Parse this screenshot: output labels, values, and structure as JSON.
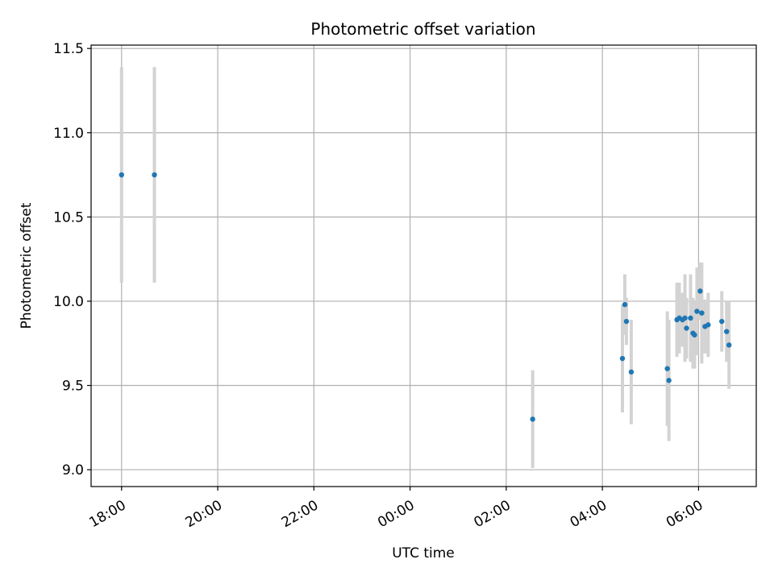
{
  "chart_data": {
    "type": "scatter",
    "title": "Photometric offset variation",
    "xlabel": "UTC time",
    "ylabel": "Photometric offset",
    "grid": true,
    "x_axis_type": "time",
    "xlim": [
      "17:22",
      "07:12"
    ],
    "ylim": [
      8.9,
      11.52
    ],
    "x_ticks": [
      "18:00",
      "20:00",
      "22:00",
      "00:00",
      "02:00",
      "04:00",
      "06:00"
    ],
    "y_ticks": [
      "9.0",
      "9.5",
      "10.0",
      "10.5",
      "11.0",
      "11.5"
    ],
    "colors": {
      "point": "#1f77b4",
      "errorbar": "#d3d3d3",
      "grid": "#b0b0b0"
    },
    "series": [
      {
        "points": [
          {
            "x": "18:00",
            "y": 10.75,
            "err": 0.64
          },
          {
            "x": "18:41",
            "y": 10.75,
            "err": 0.64
          },
          {
            "x": "02:33",
            "y": 9.3,
            "err": 0.29
          },
          {
            "x": "04:25",
            "y": 9.66,
            "err": 0.32
          },
          {
            "x": "04:28",
            "y": 9.98,
            "err": 0.18
          },
          {
            "x": "04:30",
            "y": 9.88,
            "err": 0.14
          },
          {
            "x": "04:36",
            "y": 9.58,
            "err": 0.31
          },
          {
            "x": "05:21",
            "y": 9.6,
            "err": 0.34
          },
          {
            "x": "05:23",
            "y": 9.53,
            "err": 0.36
          },
          {
            "x": "05:33",
            "y": 9.89,
            "err": 0.22
          },
          {
            "x": "05:36",
            "y": 9.9,
            "err": 0.21
          },
          {
            "x": "05:40",
            "y": 9.89,
            "err": 0.16
          },
          {
            "x": "05:43",
            "y": 9.9,
            "err": 0.26
          },
          {
            "x": "05:45",
            "y": 9.84,
            "err": 0.18
          },
          {
            "x": "05:50",
            "y": 9.9,
            "err": 0.26
          },
          {
            "x": "05:53",
            "y": 9.81,
            "err": 0.21
          },
          {
            "x": "05:55",
            "y": 9.8,
            "err": 0.2
          },
          {
            "x": "05:58",
            "y": 9.94,
            "err": 0.26
          },
          {
            "x": "06:02",
            "y": 10.06,
            "err": 0.17
          },
          {
            "x": "06:04",
            "y": 9.93,
            "err": 0.3
          },
          {
            "x": "06:08",
            "y": 9.85,
            "err": 0.16
          },
          {
            "x": "06:12",
            "y": 9.86,
            "err": 0.19
          },
          {
            "x": "06:29",
            "y": 9.88,
            "err": 0.18
          },
          {
            "x": "06:35",
            "y": 9.82,
            "err": 0.18
          },
          {
            "x": "06:38",
            "y": 9.74,
            "err": 0.26
          }
        ]
      }
    ]
  }
}
